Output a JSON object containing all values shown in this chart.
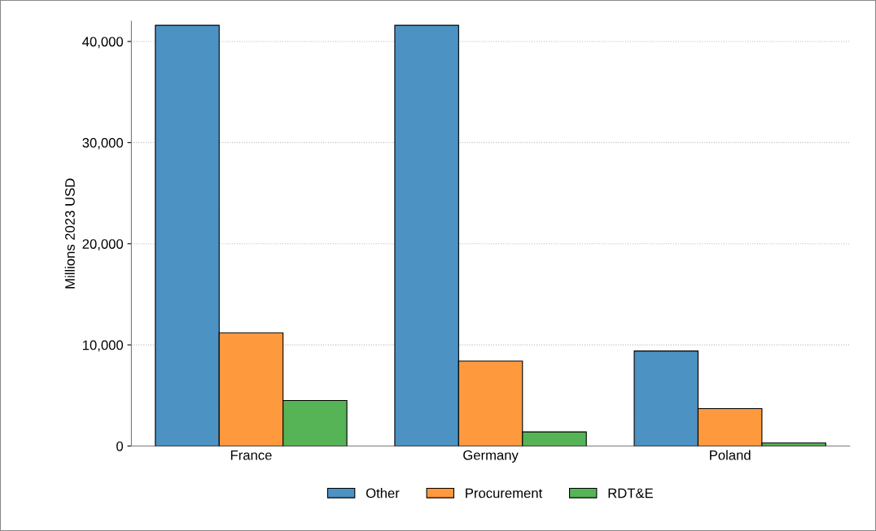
{
  "chart_data": {
    "type": "bar",
    "ylabel": "Millions 2023 USD",
    "categories": [
      "France",
      "Germany",
      "Poland"
    ],
    "series": [
      {
        "name": "Other",
        "color": "#4c92c3",
        "values": [
          41600,
          41600,
          9400
        ]
      },
      {
        "name": "Procurement",
        "color": "#ff993e",
        "values": [
          11200,
          8400,
          3700
        ]
      },
      {
        "name": "RDT&E",
        "color": "#56b356",
        "values": [
          4500,
          1400,
          300
        ]
      }
    ],
    "ylim": [
      0,
      42000
    ],
    "yticks": [
      {
        "value": 0,
        "label": "0"
      },
      {
        "value": 10000,
        "label": "10,000"
      },
      {
        "value": 20000,
        "label": "20,000"
      },
      {
        "value": 30000,
        "label": "30,000"
      },
      {
        "value": 40000,
        "label": "40,000"
      }
    ],
    "grid": "y",
    "legend": "bottom"
  }
}
